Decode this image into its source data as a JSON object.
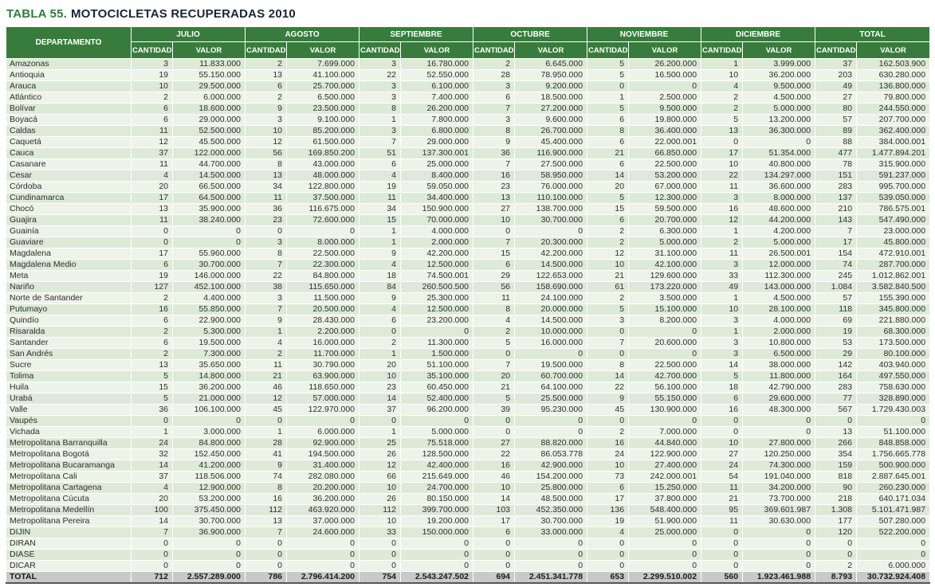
{
  "title": {
    "prefix": "TABLA 55.",
    "text": "MOTOCICLETAS RECUPERADAS 2010"
  },
  "colors": {
    "header_green": "#377C3C",
    "row_light_green": "#DEE9D8",
    "row_pale_green": "#EDF3E8",
    "total_row_gray": "#C9C9C9",
    "title_green": "#2E7D3A",
    "title_dark": "#1B2433"
  },
  "table": {
    "dept_header": "DEPARTAMENTO",
    "months": [
      "JULIO",
      "AGOSTO",
      "SEPTIEMBRE",
      "OCTUBRE",
      "NOVIEMBRE",
      "DICIEMBRE",
      "TOTAL"
    ],
    "sub_headers": [
      "CANTIDAD",
      "VALOR"
    ],
    "rows": [
      {
        "name": "Amazonas",
        "values": [
          "3",
          "11.833.000",
          "2",
          "7.699.000",
          "3",
          "16.780.000",
          "2",
          "6.645.000",
          "5",
          "26.200.000",
          "1",
          "3.999.000",
          "37",
          "162.503.900"
        ]
      },
      {
        "name": "Antioquia",
        "values": [
          "19",
          "55.150.000",
          "13",
          "41.100.000",
          "22",
          "52.550.000",
          "28",
          "78.950.000",
          "5",
          "16.500.000",
          "10",
          "36.200.000",
          "203",
          "630.280.000"
        ]
      },
      {
        "name": "Arauca",
        "values": [
          "10",
          "29.500.000",
          "6",
          "25.700.000",
          "3",
          "6.100.000",
          "3",
          "9.200.000",
          "0",
          "0",
          "4",
          "9.500.000",
          "49",
          "136.800.000"
        ]
      },
      {
        "name": "Atlántico",
        "values": [
          "2",
          "6.000.000",
          "2",
          "6.500.000",
          "3",
          "7.400.000",
          "6",
          "18.500.000",
          "1",
          "2.500.000",
          "2",
          "4.500.000",
          "27",
          "79.800.000"
        ]
      },
      {
        "name": "Bolívar",
        "values": [
          "6",
          "18.600.000",
          "9",
          "23.500.000",
          "8",
          "26.200.000",
          "7",
          "27.200.000",
          "5",
          "9.500.000",
          "2",
          "5.000.000",
          "80",
          "244.550.000"
        ]
      },
      {
        "name": "Boyacá",
        "values": [
          "6",
          "29.000.000",
          "3",
          "9.100.000",
          "1",
          "7.800.000",
          "3",
          "9.600.000",
          "6",
          "19.800.000",
          "5",
          "13.200.000",
          "57",
          "207.700.000"
        ]
      },
      {
        "name": "Caldas",
        "values": [
          "11",
          "52.500.000",
          "10",
          "85.200.000",
          "3",
          "6.800.000",
          "8",
          "26.700.000",
          "8",
          "36.400.000",
          "13",
          "36.300.000",
          "89",
          "362.400.000"
        ]
      },
      {
        "name": "Caquetá",
        "values": [
          "12",
          "45.500.000",
          "12",
          "61.500.000",
          "7",
          "29.000.000",
          "9",
          "45.400.000",
          "6",
          "22.000.001",
          "0",
          "0",
          "88",
          "384.000.001"
        ]
      },
      {
        "name": "Cauca",
        "values": [
          "37",
          "122.000.000",
          "56",
          "169.850.200",
          "51",
          "137.300.001",
          "36",
          "116.900.000",
          "21",
          "66.850.000",
          "17",
          "51.354.000",
          "477",
          "1.477.894.201"
        ]
      },
      {
        "name": "Casanare",
        "values": [
          "11",
          "44.700.000",
          "8",
          "43.000.000",
          "6",
          "25.000.000",
          "7",
          "27.500.000",
          "6",
          "22.500.000",
          "10",
          "40.800.000",
          "78",
          "315.900.000"
        ]
      },
      {
        "name": "Cesar",
        "values": [
          "4",
          "14.500.000",
          "13",
          "48.000.000",
          "4",
          "8.400.000",
          "16",
          "58.950.000",
          "14",
          "53.200.000",
          "22",
          "134.297.000",
          "151",
          "591.237.000"
        ]
      },
      {
        "name": "Córdoba",
        "values": [
          "20",
          "66.500.000",
          "34",
          "122.800.000",
          "19",
          "59.050.000",
          "23",
          "76.000.000",
          "20",
          "67.000.000",
          "11",
          "36.600.000",
          "283",
          "995.700.000"
        ]
      },
      {
        "name": "Cundinamarca",
        "values": [
          "17",
          "64.500.000",
          "11",
          "37.500.000",
          "11",
          "34.400.000",
          "13",
          "110.100.000",
          "5",
          "12.300.000",
          "3",
          "8.000.000",
          "137",
          "539.050.000"
        ]
      },
      {
        "name": "Chocó",
        "values": [
          "13",
          "35.900.000",
          "36",
          "116.675.000",
          "34",
          "150.900.000",
          "27",
          "138.700.000",
          "15",
          "59.500.000",
          "16",
          "48.600.000",
          "210",
          "786.575.001"
        ]
      },
      {
        "name": "Guajira",
        "values": [
          "11",
          "38.240.000",
          "23",
          "72.600.000",
          "15",
          "70.000.000",
          "10",
          "30.700.000",
          "6",
          "20.700.000",
          "12",
          "44.200.000",
          "143",
          "547.490.000"
        ]
      },
      {
        "name": "Guainía",
        "values": [
          "0",
          "0",
          "0",
          "0",
          "1",
          "4.000.000",
          "0",
          "0",
          "2",
          "6.300.000",
          "1",
          "4.200.000",
          "7",
          "23.000.000"
        ]
      },
      {
        "name": "Guaviare",
        "values": [
          "0",
          "0",
          "3",
          "8.000.000",
          "1",
          "2.000.000",
          "7",
          "20.300.000",
          "2",
          "5.000.000",
          "2",
          "5.000.000",
          "17",
          "45.800.000"
        ]
      },
      {
        "name": "Magdalena",
        "values": [
          "17",
          "55.960.000",
          "8",
          "22.500.000",
          "9",
          "42.200.000",
          "15",
          "42.200.000",
          "12",
          "31.100.000",
          "11",
          "26.500.001",
          "154",
          "472.910.001"
        ]
      },
      {
        "name": "Magdalena Medio",
        "values": [
          "6",
          "30.700.000",
          "7",
          "22.300.000",
          "4",
          "12.500.000",
          "6",
          "14.500.000",
          "10",
          "42.100.000",
          "3",
          "12.000.000",
          "74",
          "287.700.000"
        ]
      },
      {
        "name": "Meta",
        "values": [
          "19",
          "146.000.000",
          "22",
          "84.800.000",
          "18",
          "74.500.001",
          "29",
          "122.653.000",
          "21",
          "129.600.000",
          "33",
          "112.300.000",
          "245",
          "1.012.862.001"
        ]
      },
      {
        "name": "Nariño",
        "values": [
          "127",
          "452.100.000",
          "38",
          "115.650.000",
          "84",
          "260.500.500",
          "56",
          "158.690.000",
          "61",
          "173.220.000",
          "49",
          "143.000.000",
          "1.084",
          "3.582.840.500"
        ]
      },
      {
        "name": "Norte de Santander",
        "values": [
          "2",
          "4.400.000",
          "3",
          "11.500.000",
          "9",
          "25.300.000",
          "11",
          "24.100.000",
          "2",
          "3.500.000",
          "1",
          "4.500.000",
          "57",
          "155.390.000"
        ]
      },
      {
        "name": "Putumayo",
        "values": [
          "16",
          "55.850.000",
          "7",
          "20.500.000",
          "4",
          "12.500.000",
          "8",
          "20.000.000",
          "5",
          "15.100.000",
          "10",
          "28.100.000",
          "118",
          "345.800.000"
        ]
      },
      {
        "name": "Quindío",
        "values": [
          "6",
          "22.900.000",
          "9",
          "28.430.000",
          "6",
          "23.200.000",
          "4",
          "14.500.000",
          "3",
          "8.200.000",
          "3",
          "4.000.000",
          "69",
          "221.880.000"
        ]
      },
      {
        "name": "Risaralda",
        "values": [
          "2",
          "5.300.000",
          "1",
          "2.200.000",
          "0",
          "0",
          "2",
          "10.000.000",
          "0",
          "0",
          "1",
          "2.000.000",
          "19",
          "68.300.000"
        ]
      },
      {
        "name": "Santander",
        "values": [
          "6",
          "19.500.000",
          "4",
          "16.000.000",
          "2",
          "11.300.000",
          "5",
          "16.000.000",
          "7",
          "20.600.000",
          "3",
          "10.800.000",
          "53",
          "173.500.000"
        ]
      },
      {
        "name": "San Andrés",
        "values": [
          "2",
          "7.300.000",
          "2",
          "11.700.000",
          "1",
          "1.500.000",
          "0",
          "0",
          "0",
          "0",
          "3",
          "6.500.000",
          "29",
          "80.100.000"
        ]
      },
      {
        "name": "Sucre",
        "values": [
          "13",
          "35.650.000",
          "11",
          "30.790.000",
          "20",
          "51.100.000",
          "7",
          "19.500.000",
          "8",
          "22.500.000",
          "14",
          "38.000.000",
          "142",
          "403.940.000"
        ]
      },
      {
        "name": "Tolima",
        "values": [
          "5",
          "14.800.000",
          "21",
          "63.900.000",
          "10",
          "35.100.000",
          "20",
          "60.700.000",
          "14",
          "42.700.000",
          "5",
          "11.800.000",
          "164",
          "497.550.000"
        ]
      },
      {
        "name": "Huila",
        "values": [
          "15",
          "36.200.000",
          "46",
          "118.650.000",
          "23",
          "60.450.000",
          "21",
          "64.100.000",
          "22",
          "56.100.000",
          "18",
          "42.790.000",
          "283",
          "758.630.000"
        ]
      },
      {
        "name": "Urabá",
        "values": [
          "5",
          "21.000.000",
          "12",
          "57.000.000",
          "14",
          "52.400.000",
          "5",
          "25.500.000",
          "9",
          "55.150.000",
          "6",
          "29.600.000",
          "77",
          "328.890.000"
        ]
      },
      {
        "name": "Valle",
        "values": [
          "36",
          "106.100.000",
          "45",
          "122.970.000",
          "37",
          "96.200.000",
          "39",
          "95.230.000",
          "45",
          "130.900.000",
          "16",
          "48.300.000",
          "567",
          "1.729.430.003"
        ]
      },
      {
        "name": "Vaupés",
        "values": [
          "0",
          "0",
          "0",
          "0",
          "0",
          "0",
          "0",
          "0",
          "0",
          "0",
          "0",
          "0",
          "0",
          "0"
        ]
      },
      {
        "name": "Vichada",
        "values": [
          "1",
          "3.000.000",
          "1",
          "6.000.000",
          "1",
          "5.000.000",
          "0",
          "0",
          "2",
          "7.000.000",
          "0",
          "0",
          "13",
          "51.100.000"
        ]
      },
      {
        "name": "Metropolitana Barranquilla",
        "values": [
          "24",
          "84.800.000",
          "28",
          "92.900.000",
          "25",
          "75.518.000",
          "27",
          "88.820.000",
          "16",
          "44.840.000",
          "10",
          "27.800.000",
          "266",
          "848.858.000"
        ]
      },
      {
        "name": "Metropolitana Bogotá",
        "values": [
          "32",
          "152.450.000",
          "41",
          "194.500.000",
          "26",
          "128.500.000",
          "22",
          "86.053.778",
          "24",
          "122.900.000",
          "27",
          "120.250.000",
          "354",
          "1.756.665.778"
        ]
      },
      {
        "name": "Metropolitana Bucaramanga",
        "values": [
          "14",
          "41.200.000",
          "9",
          "31.400.000",
          "12",
          "42.400.000",
          "16",
          "42.900.000",
          "10",
          "27.400.000",
          "24",
          "74.300.000",
          "159",
          "500.900.000"
        ]
      },
      {
        "name": "Metropolitana Cali",
        "values": [
          "37",
          "118.506.000",
          "74",
          "282.080.000",
          "66",
          "215.649.000",
          "46",
          "154.200.000",
          "73",
          "242.000.001",
          "54",
          "191.040.000",
          "818",
          "2.887.645.001"
        ]
      },
      {
        "name": "Metropolitana Cartagena",
        "values": [
          "4",
          "12.900.000",
          "8",
          "20.200.000",
          "10",
          "24.700.000",
          "10",
          "25.800.000",
          "6",
          "15.250.000",
          "11",
          "34.200.000",
          "90",
          "260.230.000"
        ]
      },
      {
        "name": "Metropolitana Cúcuta",
        "values": [
          "20",
          "53.200.000",
          "16",
          "36.200.000",
          "26",
          "80.150.000",
          "14",
          "48.500.000",
          "17",
          "37.800.000",
          "21",
          "73.700.000",
          "218",
          "640.171.034"
        ]
      },
      {
        "name": "Metropolitana Medellín",
        "values": [
          "100",
          "375.450.000",
          "112",
          "463.920.000",
          "112",
          "399.700.000",
          "103",
          "452.350.000",
          "136",
          "548.400.000",
          "95",
          "369.601.987",
          "1.308",
          "5.101.471.987"
        ]
      },
      {
        "name": "Metropolitana Pereira",
        "values": [
          "14",
          "30.700.000",
          "13",
          "37.000.000",
          "10",
          "19.200.000",
          "17",
          "30.700.000",
          "19",
          "51.900.000",
          "11",
          "30.630.000",
          "177",
          "507.280.000"
        ]
      },
      {
        "name": "DIJIN",
        "values": [
          "7",
          "36.900.000",
          "7",
          "24.600.000",
          "33",
          "150.000.000",
          "6",
          "33.000.000",
          "4",
          "25.000.000",
          "0",
          "0",
          "120",
          "522.200.000"
        ]
      },
      {
        "name": "DIRAN",
        "values": [
          "0",
          "0",
          "0",
          "0",
          "0",
          "0",
          "0",
          "0",
          "0",
          "0",
          "0",
          "0",
          "0",
          "0"
        ]
      },
      {
        "name": "DIASE",
        "values": [
          "0",
          "0",
          "0",
          "0",
          "0",
          "0",
          "0",
          "0",
          "0",
          "0",
          "0",
          "0",
          "0",
          "0"
        ]
      },
      {
        "name": "DICAR",
        "values": [
          "0",
          "0",
          "0",
          "0",
          "0",
          "0",
          "0",
          "0",
          "0",
          "0",
          "0",
          "0",
          "2",
          "6.000.000"
        ]
      }
    ],
    "total": {
      "name": "TOTAL",
      "values": [
        "712",
        "2.557.289.000",
        "786",
        "2.796.414.200",
        "754",
        "2.543.247.502",
        "694",
        "2.451.341.778",
        "653",
        "2.299.510.002",
        "560",
        "1.923.461.988",
        "8.793",
        "30.732.924.408"
      ]
    }
  }
}
